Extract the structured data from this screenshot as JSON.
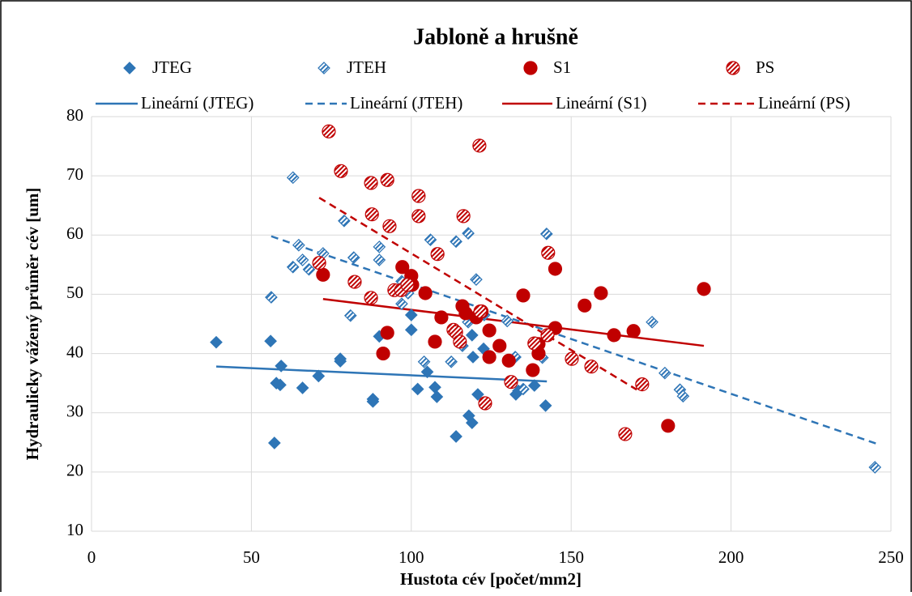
{
  "chart_data": {
    "type": "scatter",
    "title": "Jabloně a hrušně",
    "x_label": "Hustota cév [počet/mm2]",
    "y_label": "Hydraulicky vážený průměr cév [um]",
    "xlim": [
      0,
      250
    ],
    "xticks": [
      0,
      50,
      100,
      150,
      200,
      250
    ],
    "ylim": [
      10,
      80
    ],
    "yticks": [
      10,
      20,
      30,
      40,
      50,
      60,
      70,
      80
    ],
    "grid": true,
    "series": [
      {
        "name": "JTEG",
        "color": "#2e75b6",
        "marker": "diamond",
        "fill": "solid",
        "x": [
          39,
          56,
          57.2,
          57.8,
          59.3,
          59,
          66,
          71,
          77.8,
          77.8,
          88,
          88,
          90,
          100,
          100,
          102,
          105,
          107.4,
          108,
          114,
          118,
          119,
          119.3,
          120.8,
          122.6,
          132.7,
          133.5,
          138.5,
          142,
          119
        ],
        "values": [
          41.9,
          42.1,
          24.9,
          35,
          37.9,
          34.7,
          34.2,
          36.2,
          39.1,
          38.7,
          32.3,
          31.9,
          42.9,
          46.5,
          44,
          34,
          36.9,
          34.3,
          32.7,
          26,
          29.5,
          28.3,
          39.4,
          33.1,
          40.8,
          33.1,
          33.7,
          34.6,
          31.2,
          43.1
        ]
      },
      {
        "name": "JTEH",
        "color": "#2e75b6",
        "marker": "diamond",
        "fill": "hatched",
        "x": [
          63,
          56.2,
          63,
          64.8,
          66,
          68,
          72.4,
          79,
          82,
          81,
          90,
          90,
          97,
          97,
          99,
          106,
          104,
          112.5,
          114,
          116,
          117.8,
          117.8,
          120.3,
          122.8,
          130,
          132.5,
          135,
          142.3,
          141,
          175.3,
          179.3,
          184,
          185,
          245
        ],
        "values": [
          69.7,
          49.5,
          54.6,
          58.3,
          55.8,
          54.2,
          56.9,
          62.4,
          56.2,
          46.4,
          58,
          55.8,
          52.2,
          48.4,
          50.2,
          59.2,
          38.6,
          38.6,
          58.9,
          41.3,
          60.3,
          45.3,
          52.5,
          46.5,
          45.5,
          39.4,
          34,
          60.2,
          39.3,
          45.3,
          36.7,
          33.9,
          32.8,
          20.8
        ]
      },
      {
        "name": "S1",
        "color": "#c00000",
        "marker": "circle",
        "fill": "solid",
        "x": [
          72.4,
          91.2,
          92.5,
          97.2,
          100,
          100.3,
          104.4,
          107.4,
          109.4,
          116,
          117,
          120.3,
          122,
          124.4,
          124.4,
          127.6,
          130.5,
          135,
          138,
          139.8,
          139.8,
          145,
          145,
          154.2,
          159.3,
          163.4,
          169.5,
          180.3,
          191.5
        ],
        "values": [
          53.3,
          40,
          43.5,
          54.6,
          53.1,
          51.6,
          50.2,
          42,
          46.1,
          48,
          46.8,
          46.1,
          47.1,
          39.4,
          43.9,
          41.3,
          38.8,
          49.8,
          37.2,
          41.6,
          40,
          44.3,
          54.3,
          48.1,
          50.2,
          43.1,
          43.8,
          27.8,
          50.9
        ]
      },
      {
        "name": "PS",
        "color": "#c00000",
        "marker": "circle",
        "fill": "hatched",
        "x": [
          74.2,
          78,
          71.2,
          87.4,
          92.5,
          87.7,
          93.2,
          82.3,
          87.4,
          94.7,
          96.8,
          98.8,
          102.3,
          102.3,
          108.2,
          116.3,
          121.3,
          113.2,
          114,
          115.2,
          121.6,
          123.1,
          131.2,
          138.5,
          142.8,
          142.6,
          150.2,
          156.3,
          166.9,
          172.2
        ],
        "values": [
          77.5,
          70.8,
          55.3,
          68.8,
          69.3,
          63.5,
          61.5,
          52.1,
          49.4,
          50.7,
          50.7,
          51.6,
          66.6,
          63.2,
          56.8,
          63.2,
          75.1,
          44,
          43.6,
          42,
          47.1,
          31.6,
          35.2,
          41.7,
          57,
          43.1,
          39.1,
          37.8,
          26.4,
          34.8
        ]
      }
    ],
    "trendlines": [
      {
        "name": "Lineární (JTEG)",
        "color": "#2e75b6",
        "dashed": false,
        "x": [
          39,
          142.4
        ],
        "values": [
          37.8,
          35.3
        ]
      },
      {
        "name": "Lineární (JTEH)",
        "color": "#2e75b6",
        "dashed": true,
        "x": [
          56.2,
          245.4
        ],
        "values": [
          59.8,
          24.8
        ]
      },
      {
        "name": "Lineární (S1)",
        "color": "#c00000",
        "dashed": false,
        "x": [
          72.4,
          191.5
        ],
        "values": [
          49.2,
          41.3
        ]
      },
      {
        "name": "Lineární (PS)",
        "color": "#c00000",
        "dashed": true,
        "x": [
          71.2,
          170.5
        ],
        "values": [
          66.3,
          33.9
        ]
      }
    ]
  }
}
